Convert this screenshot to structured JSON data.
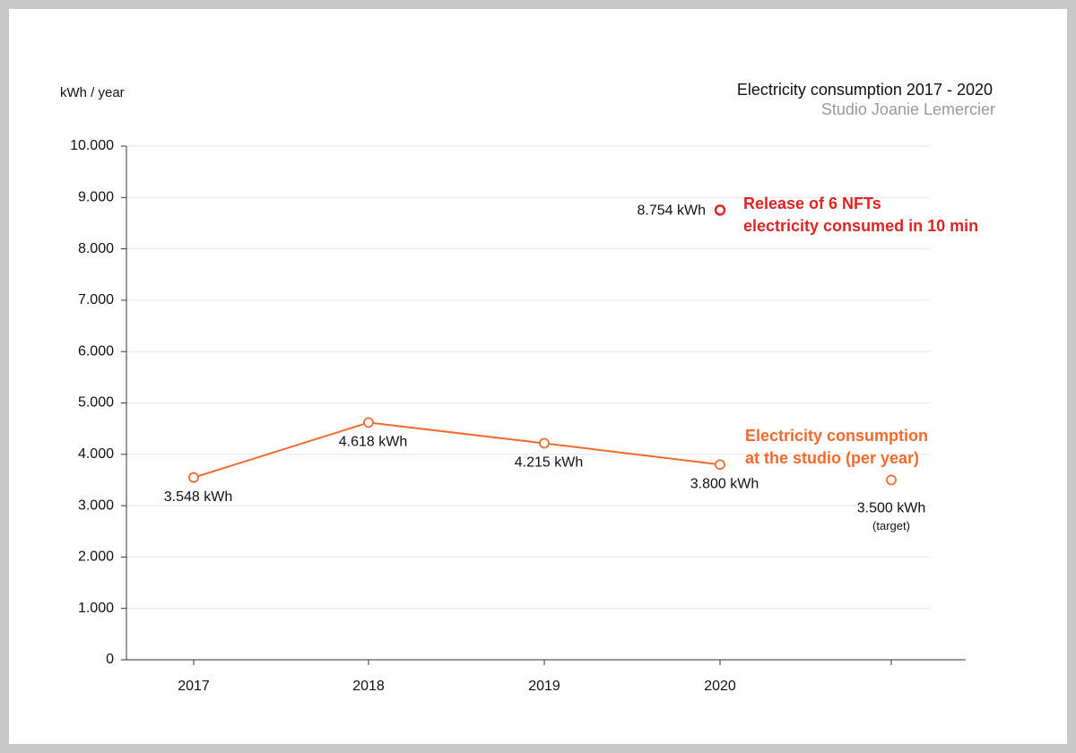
{
  "chart_data": {
    "type": "line",
    "title": "Electricity consumption 2017 - 2020",
    "subtitle": "Studio Joanie Lemercier",
    "y_label": "kWh / year",
    "categories": [
      "2017",
      "2018",
      "2019",
      "2020",
      null
    ],
    "series": [
      {
        "color": "#f26b2d",
        "line": true,
        "values": [
          3548,
          4618,
          4215,
          3800,
          null
        ],
        "value_labels": [
          "3.548 kWh",
          "4.618 kWh",
          "4.215 kWh",
          "3.800 kWh",
          null
        ]
      },
      {
        "color": "#f26b2d",
        "line": false,
        "values": [
          null,
          null,
          null,
          null,
          3500
        ],
        "value_labels": [
          null,
          null,
          null,
          null,
          "3.500 kWh"
        ],
        "note": "(target)"
      },
      {
        "color": "#e02424",
        "line": false,
        "values": [
          null,
          null,
          null,
          8754,
          null
        ],
        "value_labels": [
          null,
          null,
          null,
          "8.754 kWh",
          null
        ]
      }
    ],
    "annotations": [
      {
        "lines": [
          "Release of 6 NFTs",
          "electricity consumed in 10 min"
        ],
        "color": "#e02424"
      },
      {
        "lines": [
          "Electricity consumption",
          "at the studio (per year)"
        ],
        "color": "#f26b2d"
      }
    ],
    "ylim": [
      0,
      10000
    ],
    "yticks": [
      0,
      {
        "value": 1000,
        "label": "1.000"
      },
      {
        "value": 2000,
        "label": "2.000"
      },
      {
        "value": 3000,
        "label": "3.000"
      },
      {
        "value": 4000,
        "label": "4.000"
      },
      {
        "value": 5000,
        "label": "5.000"
      },
      {
        "value": 6000,
        "label": "6.000"
      },
      {
        "value": 7000,
        "label": "7.000"
      },
      {
        "value": 8000,
        "label": "8.000"
      },
      {
        "value": 9000,
        "label": "9.000"
      },
      {
        "value": 10000,
        "label": "10.000"
      }
    ],
    "grid": true
  }
}
